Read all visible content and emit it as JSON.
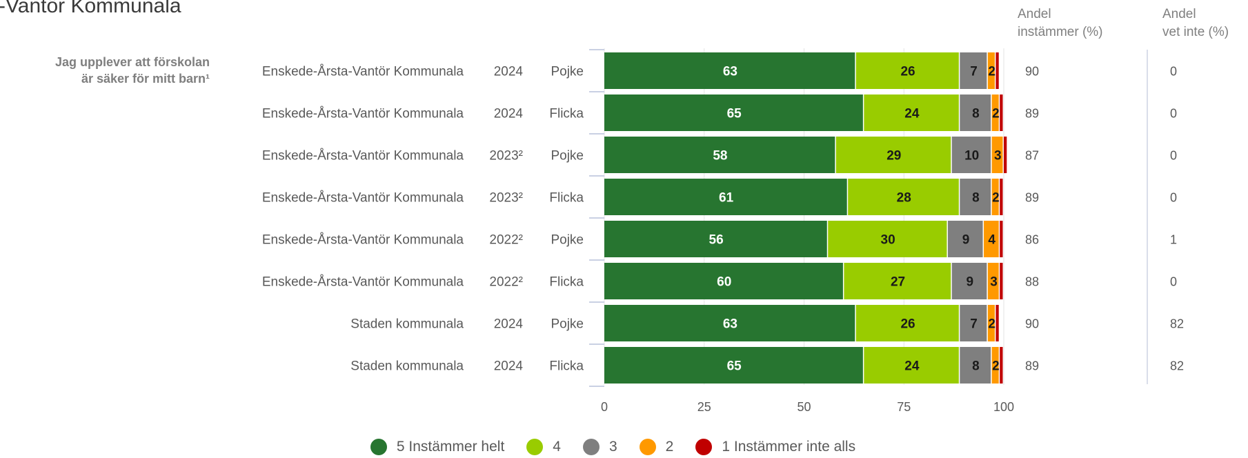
{
  "page": {
    "title_fragment": "-Vantör Kommunala",
    "question_line1": "Jag upplever att förskolan",
    "question_line2": "är säker för mitt barn¹",
    "col1_header_line1": "Andel",
    "col1_header_line2": "instämmer (%)",
    "col2_header_line1": "Andel",
    "col2_header_line2": "vet inte (%)"
  },
  "chart_data": {
    "type": "bar",
    "orientation": "horizontal",
    "stacked": true,
    "xlim": [
      0,
      100
    ],
    "xticks": [
      "0",
      "25",
      "50",
      "75",
      "100"
    ],
    "categories": [
      {
        "unit": "Enskede-Årsta-Vantör Kommunala",
        "year": "2024",
        "gender": "Pojke",
        "andel_instammer": "90",
        "andel_vet_inte": "0"
      },
      {
        "unit": "Enskede-Årsta-Vantör Kommunala",
        "year": "2024",
        "gender": "Flicka",
        "andel_instammer": "89",
        "andel_vet_inte": "0"
      },
      {
        "unit": "Enskede-Årsta-Vantör Kommunala",
        "year": "2023²",
        "gender": "Pojke",
        "andel_instammer": "87",
        "andel_vet_inte": "0"
      },
      {
        "unit": "Enskede-Årsta-Vantör Kommunala",
        "year": "2023²",
        "gender": "Flicka",
        "andel_instammer": "89",
        "andel_vet_inte": "0"
      },
      {
        "unit": "Enskede-Årsta-Vantör Kommunala",
        "year": "2022²",
        "gender": "Pojke",
        "andel_instammer": "86",
        "andel_vet_inte": "1"
      },
      {
        "unit": "Enskede-Årsta-Vantör Kommunala",
        "year": "2022²",
        "gender": "Flicka",
        "andel_instammer": "88",
        "andel_vet_inte": "0"
      },
      {
        "unit": "Staden kommunala",
        "year": "2024",
        "gender": "Pojke",
        "andel_instammer": "90",
        "andel_vet_inte": "82"
      },
      {
        "unit": "Staden kommunala",
        "year": "2024",
        "gender": "Flicka",
        "andel_instammer": "89",
        "andel_vet_inte": "82"
      }
    ],
    "series": [
      {
        "name": "5 Instämmer helt",
        "color": "#277530",
        "label_color": "#ffffff",
        "values": [
          63,
          65,
          58,
          61,
          56,
          60,
          63,
          65
        ]
      },
      {
        "name": "4",
        "color": "#99cc00",
        "label_color": "#1a1a1a",
        "values": [
          26,
          24,
          29,
          28,
          30,
          27,
          26,
          24
        ]
      },
      {
        "name": "3",
        "color": "#7f7f7f",
        "label_color": "#1a1a1a",
        "values": [
          7,
          8,
          10,
          8,
          9,
          9,
          7,
          8
        ]
      },
      {
        "name": "2",
        "color": "#ff9900",
        "label_color": "#1a1a1a",
        "values": [
          2,
          2,
          3,
          2,
          4,
          3,
          2,
          2
        ]
      },
      {
        "name": "1 Instämmer inte alls",
        "color": "#c00000",
        "label_color": "#1a1a1a",
        "values": [
          1,
          1,
          1,
          1,
          1,
          1,
          1,
          1
        ]
      }
    ]
  }
}
